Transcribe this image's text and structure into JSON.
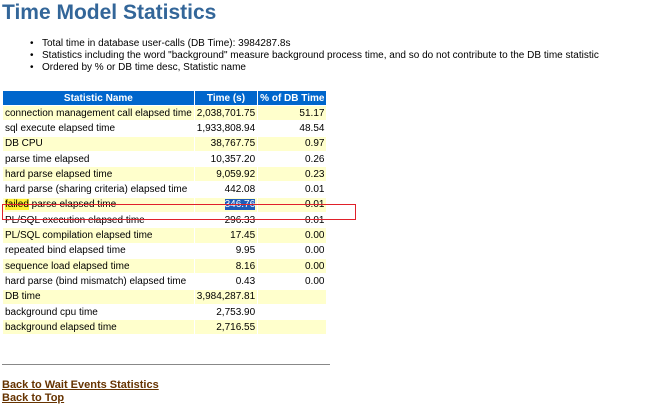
{
  "page": {
    "title": "Time Model Statistics",
    "notes": [
      "Total time in database user-calls (DB Time): 3984287.8s",
      "Statistics including the word \"background\" measure background process time, and so do not contribute to the DB time statistic",
      "Ordered by % or DB time desc, Statistic name"
    ]
  },
  "table": {
    "headers": [
      "Statistic Name",
      "Time (s)",
      "% of DB Time"
    ],
    "rows": [
      {
        "name": "connection management call elapsed time",
        "time": "2,038,701.75",
        "pct": "51.17"
      },
      {
        "name": "sql execute elapsed time",
        "time": "1,933,808.94",
        "pct": "48.54"
      },
      {
        "name": "DB CPU",
        "time": "38,767.75",
        "pct": "0.97"
      },
      {
        "name": "parse time elapsed",
        "time": "10,357.20",
        "pct": "0.26"
      },
      {
        "name": "hard parse elapsed time",
        "time": "9,059.92",
        "pct": "0.23"
      },
      {
        "name": "hard parse (sharing criteria) elapsed time",
        "time": "442.08",
        "pct": "0.01"
      },
      {
        "name": "failed parse elapsed time",
        "name_highlight": "failed",
        "name_rest": " parse elapsed time",
        "time": "346.76",
        "pct": "0.01"
      },
      {
        "name": "PL/SQL execution elapsed time",
        "time": "296.33",
        "pct": "0.01"
      },
      {
        "name": "PL/SQL compilation elapsed time",
        "time": "17.45",
        "pct": "0.00"
      },
      {
        "name": "repeated bind elapsed time",
        "time": "9.95",
        "pct": "0.00"
      },
      {
        "name": "sequence load elapsed time",
        "time": "8.16",
        "pct": "0.00"
      },
      {
        "name": "hard parse (bind mismatch) elapsed time",
        "time": "0.43",
        "pct": "0.00"
      },
      {
        "name": "DB time",
        "time": "3,984,287.81",
        "pct": ""
      },
      {
        "name": "background cpu time",
        "time": "2,753.90",
        "pct": ""
      },
      {
        "name": "background elapsed time",
        "time": "2,716.55",
        "pct": ""
      }
    ]
  },
  "links": {
    "back_wait": "Back to Wait Events Statistics",
    "back_top": "Back to Top"
  },
  "colors": {
    "title": "#336699",
    "header_bg": "#0066CC",
    "row_odd": "#FFFFCC",
    "row_even": "#FFFFFF",
    "link": "#663300",
    "selection": "#1F5CB8",
    "search_highlight": "#FFEE33",
    "annotation_box": "#E0202A"
  }
}
